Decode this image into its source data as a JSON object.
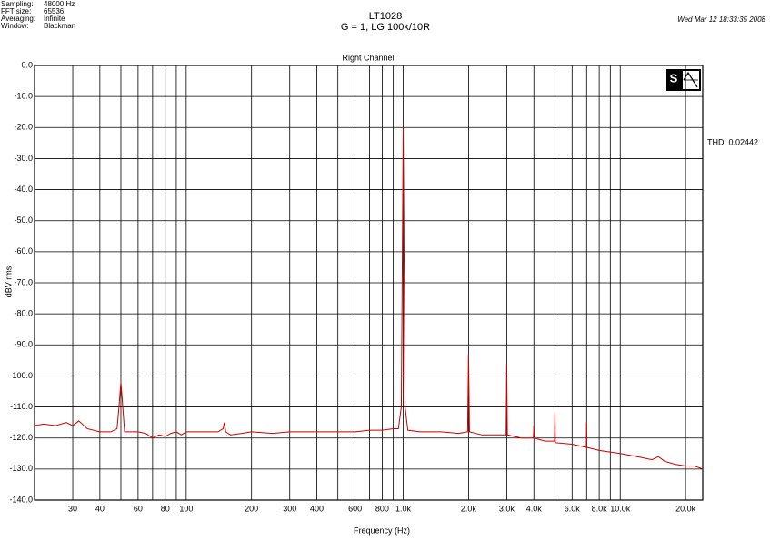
{
  "header": {
    "fields": [
      {
        "label": "Sampling:",
        "value": "48000 Hz"
      },
      {
        "label": "FFT size:",
        "value": "65536"
      },
      {
        "label": "Averaging:",
        "value": "Infinite"
      },
      {
        "label": "Window:",
        "value": "Blackman"
      }
    ],
    "date": "Wed Mar 12 18:33:35 2008"
  },
  "chart_data": {
    "type": "line",
    "title": "LT1028",
    "subtitle": "G = 1, LG 100k/10R",
    "panel_title": "Right Channel",
    "annotation": "THD: 0.02442",
    "x_label": "Frequency (Hz)",
    "y_label": "dBV rms",
    "xscale": "log",
    "grid": true,
    "color": "#cc0000",
    "xlim": [
      20,
      24000
    ],
    "ylim": [
      -140,
      0
    ],
    "xticks": [
      30,
      40,
      60,
      80,
      100,
      200,
      300,
      400,
      600,
      800,
      {
        "value": 1000,
        "label": "1.0k"
      },
      {
        "value": 2000,
        "label": "2.0k"
      },
      {
        "value": 3000,
        "label": "3.0k"
      },
      {
        "value": 4000,
        "label": "4.0k"
      },
      {
        "value": 6000,
        "label": "6.0k"
      },
      {
        "value": 8000,
        "label": "8.0k"
      },
      {
        "value": 10000,
        "label": "10.0k"
      },
      {
        "value": 20000,
        "label": "20.0k"
      }
    ],
    "x_minor_ticks": [
      50,
      70,
      90,
      500,
      700,
      900,
      5000,
      7000,
      9000
    ],
    "yticks": [
      {
        "value": 0,
        "label": "0.0"
      },
      {
        "value": -10,
        "label": "-10.0"
      },
      {
        "value": -20,
        "label": "-20.0"
      },
      {
        "value": -30,
        "label": "-30.0"
      },
      {
        "value": -40,
        "label": "-40.0"
      },
      {
        "value": -50,
        "label": "-50.0"
      },
      {
        "value": -60,
        "label": "-60.0"
      },
      {
        "value": -70,
        "label": "-70.0"
      },
      {
        "value": -80,
        "label": "-80.0"
      },
      {
        "value": -90,
        "label": "-90.0"
      },
      {
        "value": -100,
        "label": "-100.0"
      },
      {
        "value": -110,
        "label": "-110.0"
      },
      {
        "value": -120,
        "label": "-120.0"
      },
      {
        "value": -130,
        "label": "-130.0"
      },
      {
        "value": -140,
        "label": "-140.0"
      }
    ],
    "x": [
      20,
      22,
      25,
      28,
      30,
      32,
      35,
      40,
      45,
      48,
      49,
      50,
      51,
      52,
      55,
      60,
      65,
      70,
      75,
      80,
      85,
      90,
      95,
      100,
      110,
      120,
      130,
      140,
      148,
      150,
      152,
      160,
      180,
      200,
      250,
      300,
      350,
      400,
      500,
      600,
      700,
      800,
      900,
      950,
      980,
      1000,
      1020,
      1050,
      1200,
      1500,
      1800,
      1980,
      2000,
      2020,
      2300,
      2600,
      2980,
      3000,
      3020,
      3500,
      3980,
      4000,
      4020,
      4500,
      4980,
      5000,
      5020,
      6000,
      6980,
      7000,
      7020,
      8000,
      10000,
      12000,
      14000,
      15000,
      16000,
      18000,
      20000,
      22000,
      24000
    ],
    "values": [
      -116,
      -115.5,
      -116,
      -115,
      -116,
      -114.5,
      -117,
      -118,
      -118,
      -117,
      -110,
      -102,
      -110,
      -118,
      -118,
      -118,
      -118.5,
      -120,
      -119,
      -119.5,
      -118.5,
      -118,
      -119,
      -118,
      -118,
      -118,
      -118,
      -118,
      -117,
      -115,
      -118,
      -119,
      -118.5,
      -118,
      -118.5,
      -118,
      -118,
      -118,
      -118,
      -118,
      -117.5,
      -117.5,
      -117,
      -117,
      -110,
      -20,
      -110,
      -117.5,
      -118,
      -118,
      -118.5,
      -118,
      -93,
      -118,
      -119,
      -119,
      -119,
      -96,
      -119,
      -120,
      -120,
      -116,
      -120,
      -121,
      -121,
      -112,
      -121.5,
      -122,
      -123,
      -115,
      -123,
      -124,
      -125,
      -126,
      -127,
      -126,
      -127.5,
      -128.5,
      -129,
      -129,
      -130
    ]
  }
}
